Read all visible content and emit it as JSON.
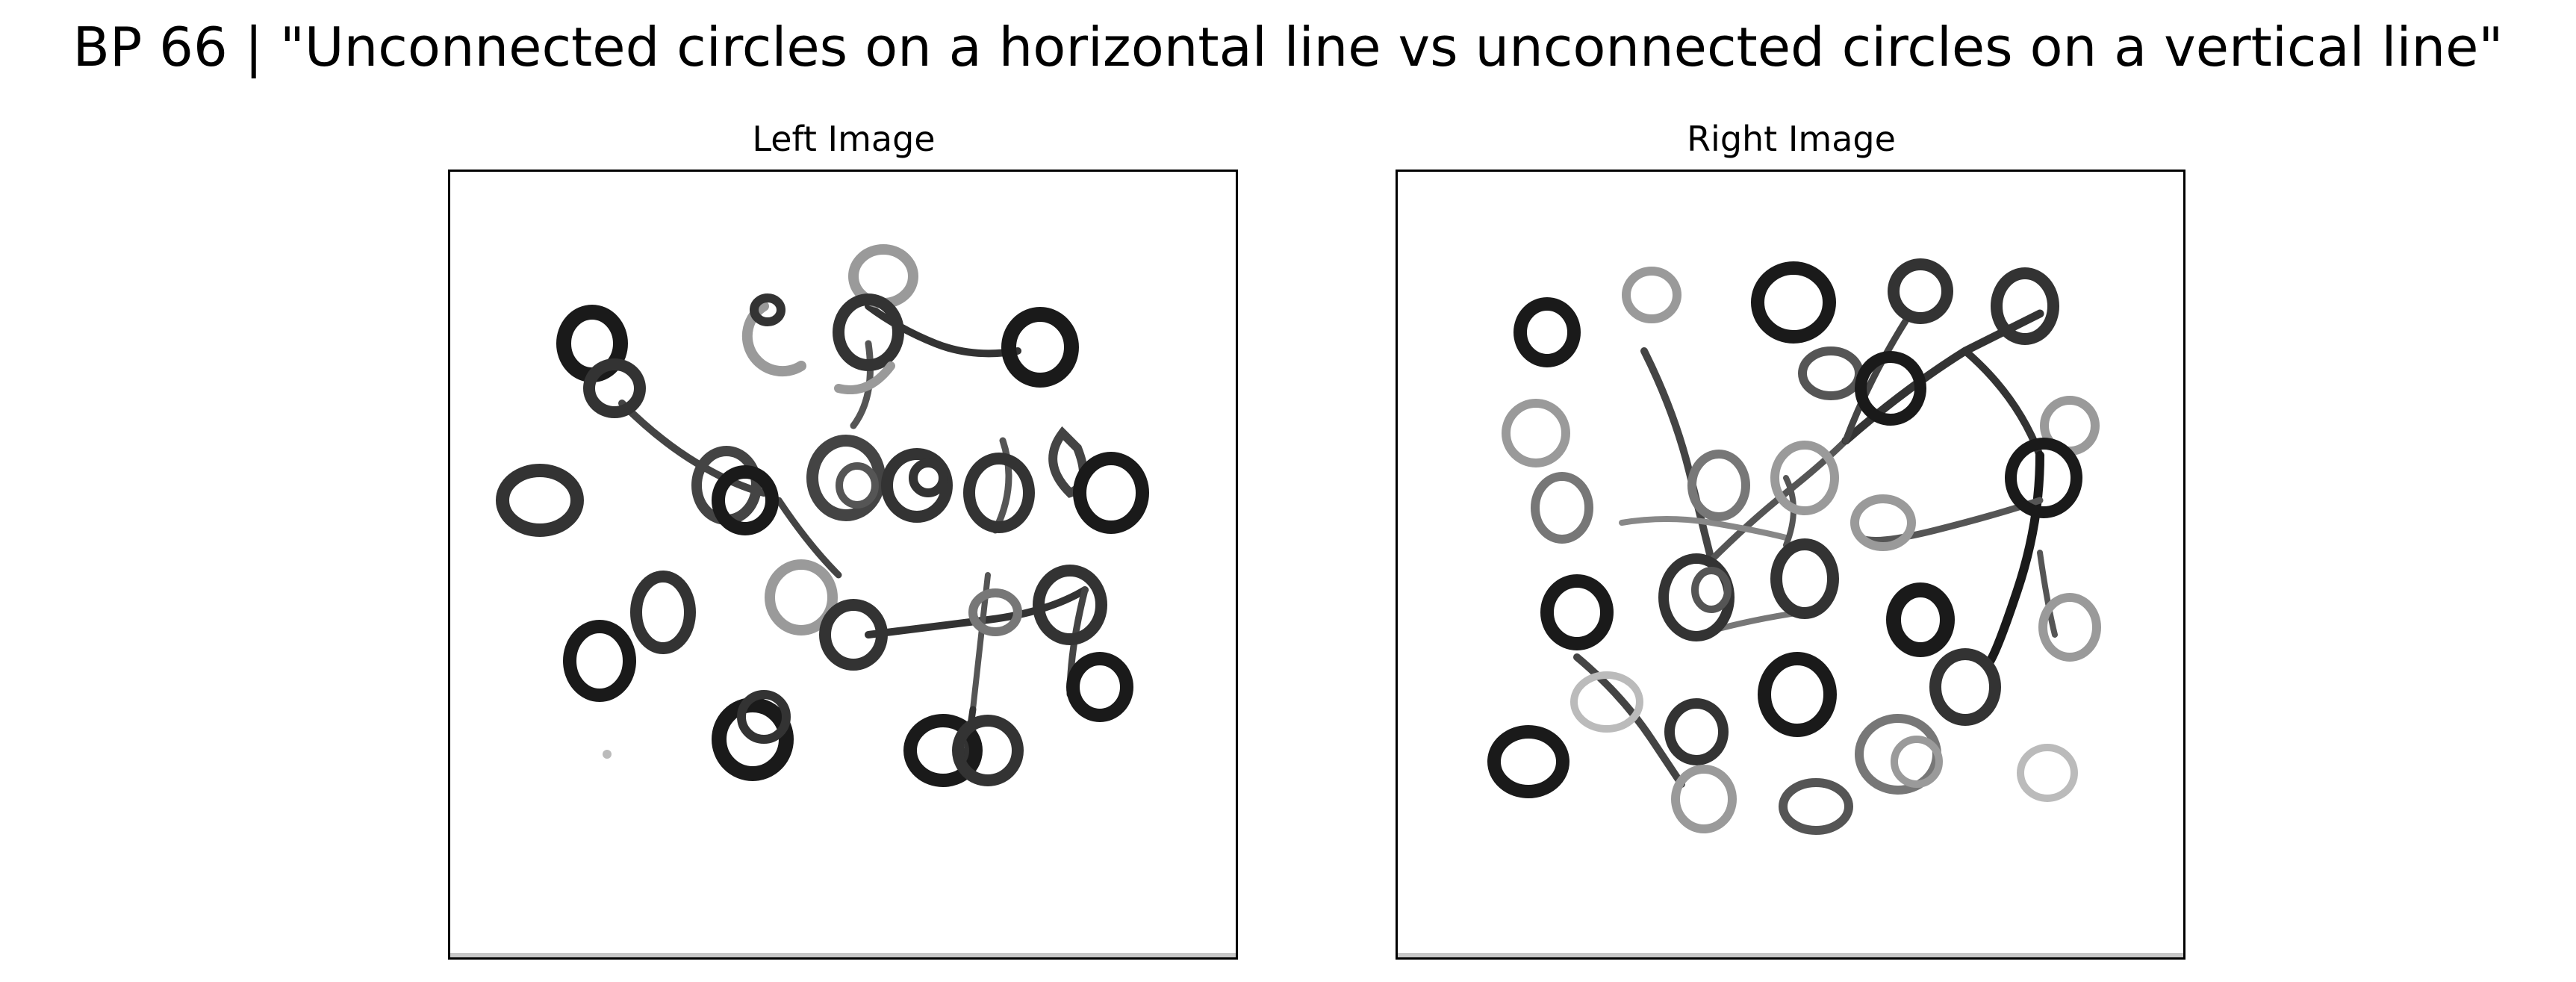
{
  "figure": {
    "title": "BP 66 | \"Unconnected circles on a horizontal line vs unconnected circles on a vertical line\""
  },
  "panels": {
    "left": {
      "title": "Left Image"
    },
    "right": {
      "title": "Right Image"
    }
  },
  "colors": {
    "ink_dark": "#1a1a1a",
    "ink_mid": "#555555",
    "ink_light": "#9a9a9a",
    "frame": "#000000"
  }
}
